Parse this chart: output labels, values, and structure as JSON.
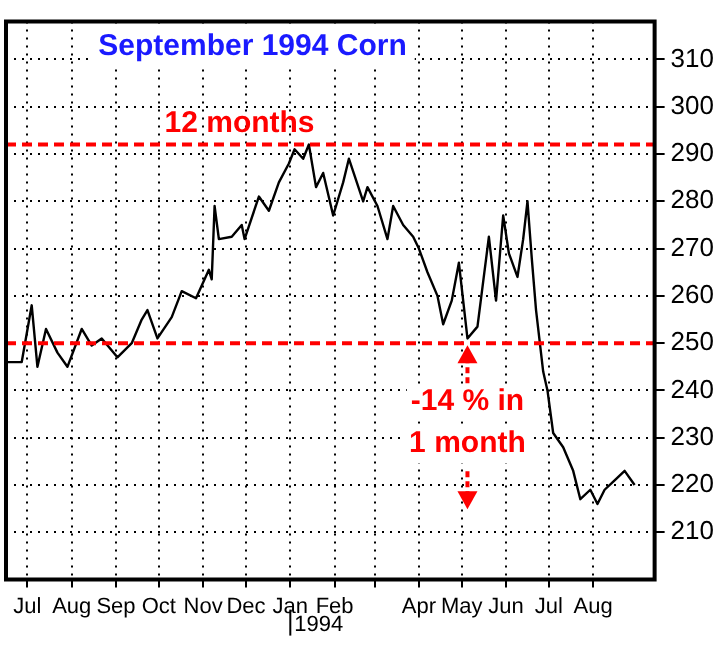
{
  "chart_data": {
    "type": "line",
    "title": "September 1994 Corn",
    "x": [
      "1993-06-17",
      "1993-06-27",
      "1993-07-04",
      "1993-07-08",
      "1993-07-14",
      "1993-07-22",
      "1993-07-29",
      "1993-08-08",
      "1993-08-15",
      "1993-08-22",
      "1993-09-02",
      "1993-09-12",
      "1993-09-19",
      "1993-09-23",
      "1993-09-30",
      "1993-10-10",
      "1993-10-17",
      "1993-10-27",
      "1993-11-05",
      "1993-11-07",
      "1993-11-09",
      "1993-11-12",
      "1993-11-21",
      "1993-11-28",
      "1993-11-30",
      "1993-12-10",
      "1993-12-17",
      "1993-12-24",
      "1993-12-31",
      "1994-01-04",
      "1994-01-10",
      "1994-01-14",
      "1994-01-19",
      "1994-01-24",
      "1994-01-31",
      "1994-02-07",
      "1994-02-11",
      "1994-02-21",
      "1994-02-24",
      "1994-03-03",
      "1994-03-10",
      "1994-03-14",
      "1994-03-21",
      "1994-03-28",
      "1994-04-01",
      "1994-04-07",
      "1994-04-14",
      "1994-04-18",
      "1994-04-24",
      "1994-04-29",
      "1994-05-05",
      "1994-05-12",
      "1994-05-16",
      "1994-05-20",
      "1994-05-25",
      "1994-05-30",
      "1994-06-03",
      "1994-06-09",
      "1994-06-13",
      "1994-06-16",
      "1994-06-19",
      "1994-06-22",
      "1994-06-27",
      "1994-06-30",
      "1994-07-04",
      "1994-07-11",
      "1994-07-18",
      "1994-07-23",
      "1994-07-30",
      "1994-08-04",
      "1994-08-09",
      "1994-08-16",
      "1994-08-23",
      "1994-08-30"
    ],
    "series": [
      {
        "color": "#000000",
        "values": [
          246,
          246,
          258,
          245,
          253,
          248,
          245,
          253,
          249.5,
          251,
          247,
          250,
          255,
          257,
          251,
          255.5,
          261,
          259.5,
          265.5,
          263.5,
          279,
          272,
          272.5,
          275,
          272,
          281,
          278,
          284,
          288,
          291,
          289,
          292,
          283,
          286,
          277,
          284,
          289,
          280,
          283,
          279,
          272,
          279,
          275,
          272.5,
          270,
          265,
          260,
          254,
          259,
          267,
          251,
          253.5,
          263,
          272.5,
          259,
          277,
          269,
          264,
          272,
          280,
          268,
          257,
          244,
          240,
          231,
          228,
          223,
          217,
          219,
          216,
          219,
          221,
          223,
          220
        ]
      }
    ],
    "xlim": [
      "1993-06-16",
      "1994-09-13"
    ],
    "xticks": [
      {
        "value": "1993-07-01",
        "label": "Jul"
      },
      {
        "value": "1993-08-01",
        "label": "Aug"
      },
      {
        "value": "1993-09-01",
        "label": "Sep"
      },
      {
        "value": "1993-10-01",
        "label": "Oct"
      },
      {
        "value": "1993-11-01",
        "label": "Nov"
      },
      {
        "value": "1993-12-01",
        "label": "Dec"
      },
      {
        "value": "1994-01-01",
        "label": "Jan"
      },
      {
        "value": "1994-02-01",
        "label": "Feb"
      },
      {
        "value": "1994-03-01",
        "label": null
      },
      {
        "value": "1994-04-01",
        "label": "Apr"
      },
      {
        "value": "1994-05-01",
        "label": "May"
      },
      {
        "value": "1994-06-01",
        "label": "Jun"
      },
      {
        "value": "1994-07-01",
        "label": "Jul"
      },
      {
        "value": "1994-08-01",
        "label": "Aug"
      }
    ],
    "ylim": [
      200,
      318
    ],
    "yticks": [
      210,
      220,
      230,
      240,
      250,
      260,
      270,
      280,
      290,
      300,
      310
    ],
    "grid": true,
    "marker": "none",
    "legend": false,
    "ref_lines": [
      {
        "axis": "y",
        "value": 292,
        "label": "12 months",
        "color": "#ff0000",
        "line_style": "dashed"
      },
      {
        "axis": "y",
        "value": 250,
        "color": "#ff0000",
        "line_style": "dashed"
      }
    ],
    "annotations": [
      {
        "text": "-14 % in\n1 month",
        "x": "1994-05-05",
        "y": 250
      },
      "1994"
    ]
  }
}
